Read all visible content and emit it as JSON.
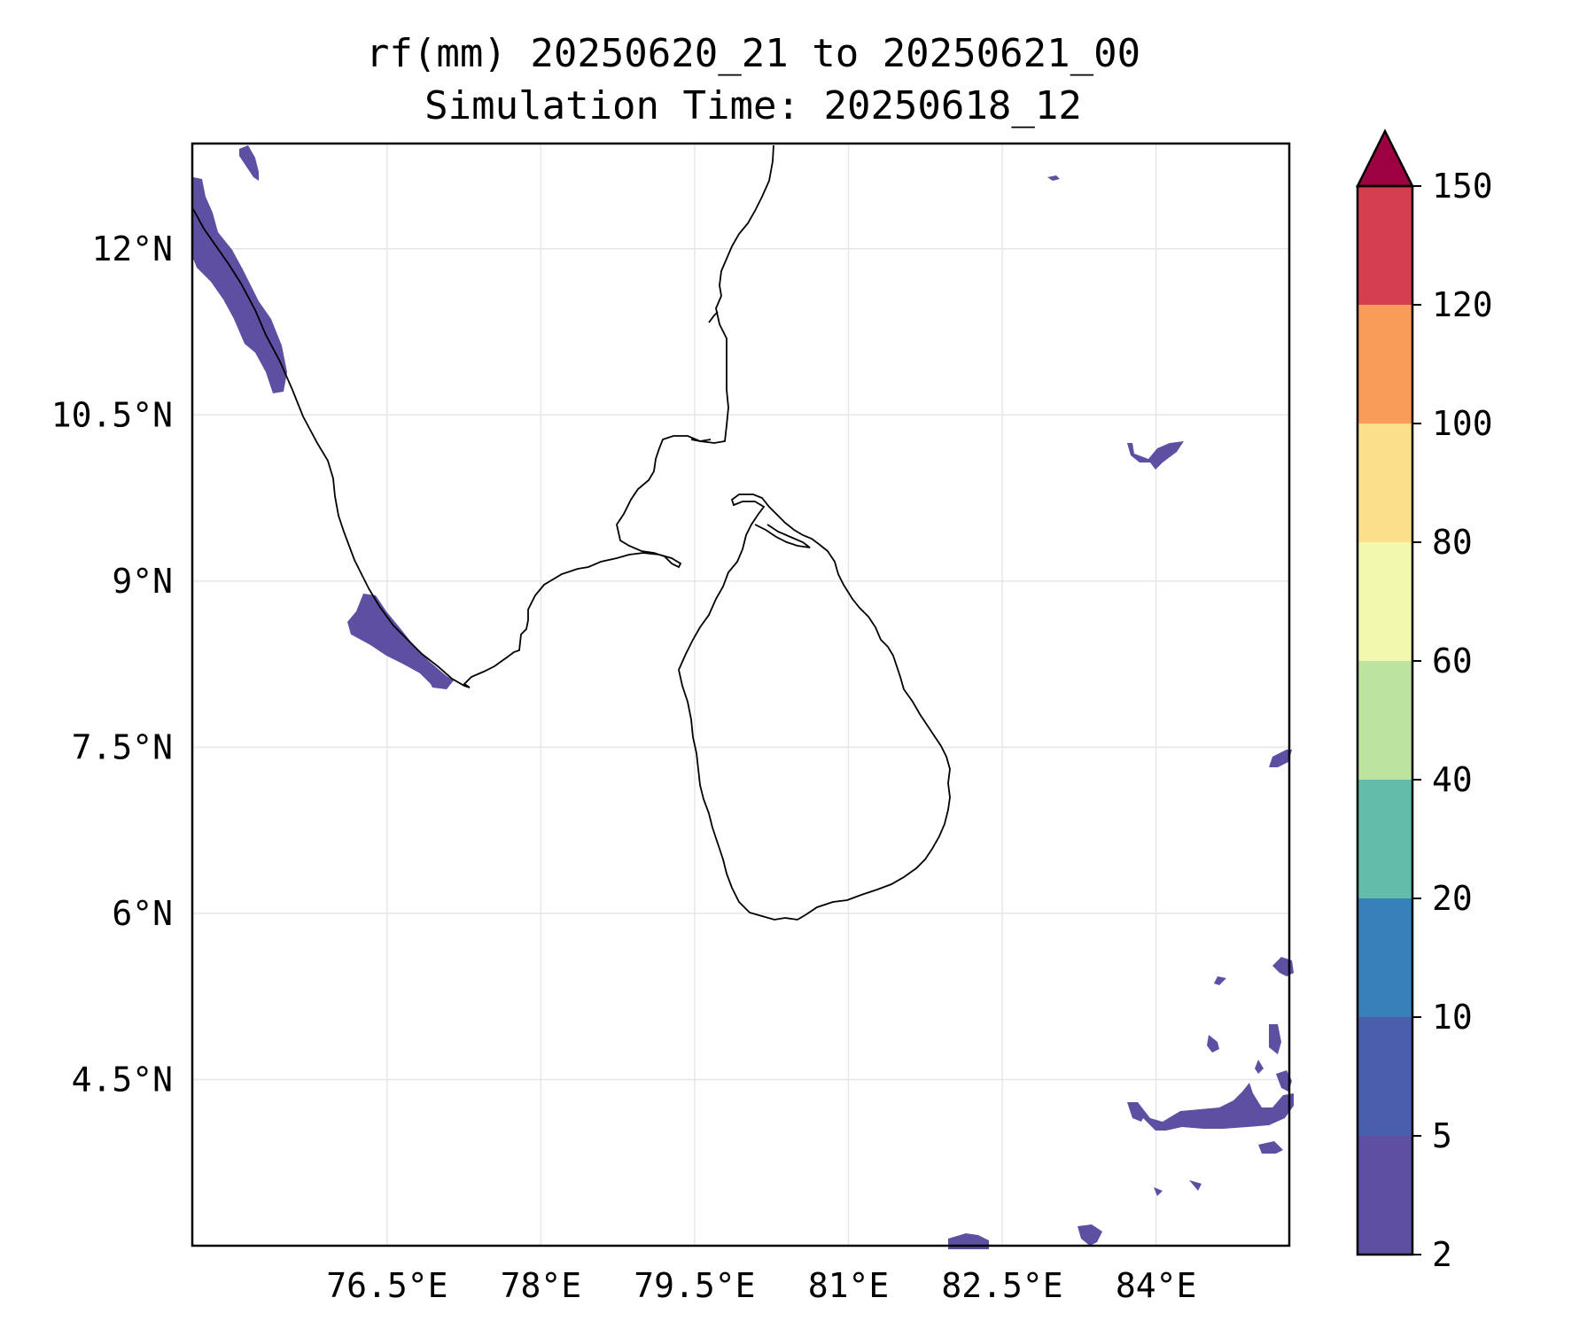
{
  "title": {
    "line1": "rf(mm) 20250620_21 to 20250621_00",
    "line2": "Simulation Time: 20250618_12"
  },
  "map": {
    "lon_range": [
      74.6,
      85.3
    ],
    "lat_range": [
      3.0,
      12.95
    ],
    "lon_ticks": [
      {
        "value": 76.5,
        "label": "76.5°E"
      },
      {
        "value": 78.0,
        "label": "78°E"
      },
      {
        "value": 79.5,
        "label": "79.5°E"
      },
      {
        "value": 81.0,
        "label": "81°E"
      },
      {
        "value": 82.5,
        "label": "82.5°E"
      },
      {
        "value": 84.0,
        "label": "84°E"
      }
    ],
    "lat_ticks": [
      {
        "value": 12.0,
        "label": "12°N"
      },
      {
        "value": 10.5,
        "label": "10.5°N"
      },
      {
        "value": 9.0,
        "label": "9°N"
      },
      {
        "value": 7.5,
        "label": "7.5°N"
      },
      {
        "value": 6.0,
        "label": "6°N"
      },
      {
        "value": 4.5,
        "label": "4.5°N"
      }
    ],
    "gridlines": true,
    "coastline_color": "#000000",
    "rain_color": "#5e4fa2"
  },
  "colorbar": {
    "levels": [
      {
        "value": 2,
        "label": "2"
      },
      {
        "value": 5,
        "label": "5"
      },
      {
        "value": 10,
        "label": "10"
      },
      {
        "value": 20,
        "label": "20"
      },
      {
        "value": 40,
        "label": "40"
      },
      {
        "value": 60,
        "label": "60"
      },
      {
        "value": 80,
        "label": "80"
      },
      {
        "value": 100,
        "label": "100"
      },
      {
        "value": 120,
        "label": "120"
      },
      {
        "value": 150,
        "label": "150"
      }
    ],
    "colors": [
      "#5e4fa2",
      "#4a5fac",
      "#3880ba",
      "#62bca9",
      "#bde3a0",
      "#f2f8ae",
      "#fcdf8b",
      "#f99c5a",
      "#d53e4f",
      "#9e0142"
    ],
    "extend": "max"
  }
}
